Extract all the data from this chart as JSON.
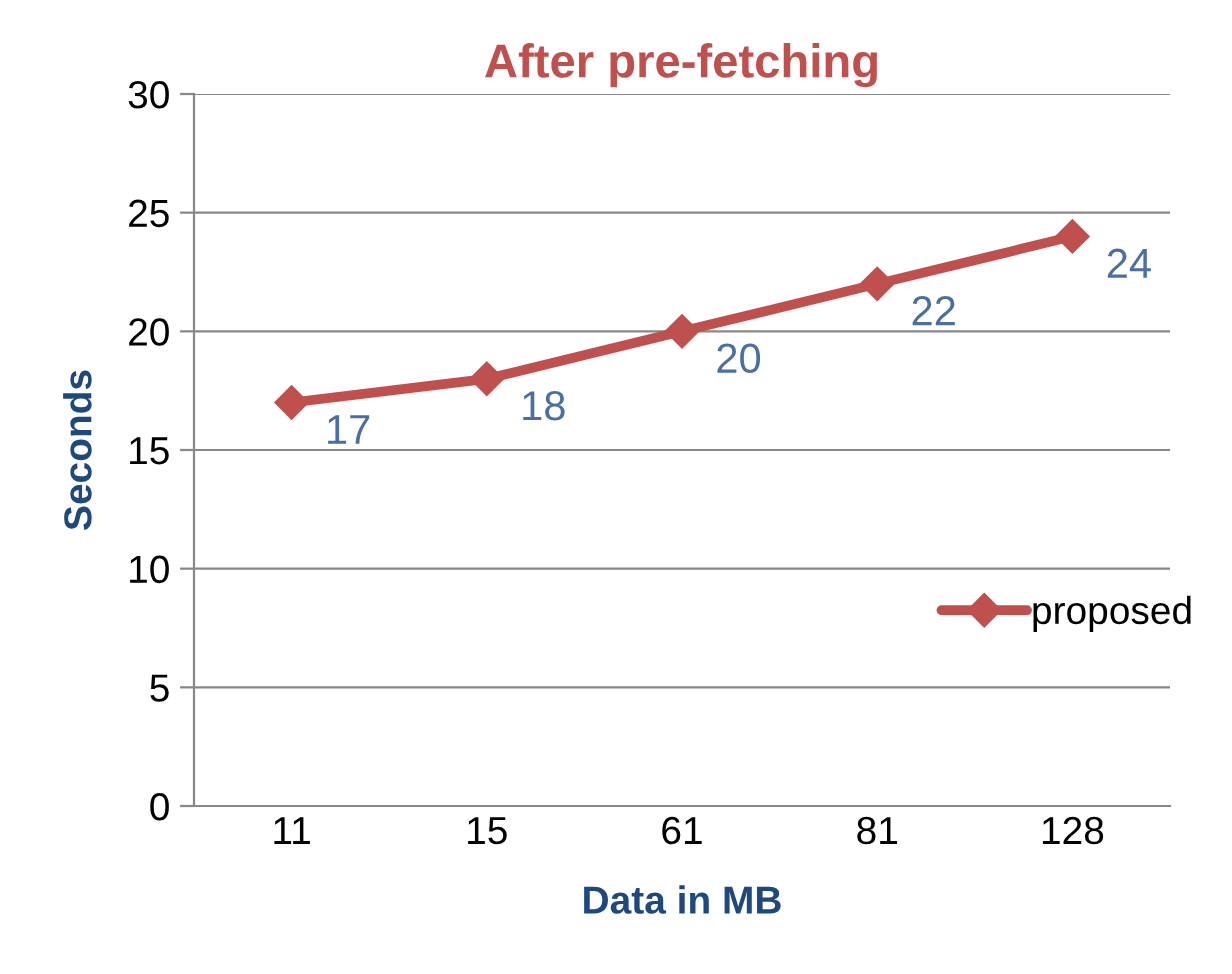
{
  "chart_data": {
    "type": "line",
    "title": "After pre-fetching",
    "xlabel": "Data in MB",
    "ylabel": "Seconds",
    "categories": [
      "11",
      "15",
      "61",
      "81",
      "128"
    ],
    "series": [
      {
        "name": "proposed",
        "color": "#c0504d",
        "values": [
          17,
          18,
          20,
          22,
          24
        ]
      }
    ],
    "ylim": [
      0,
      30
    ],
    "yticks": [
      0,
      5,
      10,
      15,
      20,
      25,
      30
    ],
    "grid": "y",
    "legend": "right",
    "marker": "diamond",
    "line_style": "solid",
    "data_labels": true
  }
}
